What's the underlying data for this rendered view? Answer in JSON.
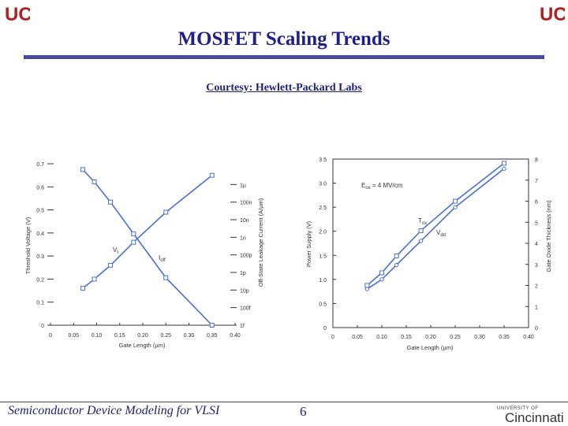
{
  "slide": {
    "title": "MOSFET Scaling Trends",
    "courtesy": "Courtesy: Hewlett-Packard Labs",
    "footer_text": "Semiconductor Device Modeling for VLSI",
    "page_number": "6",
    "institution_small": "UNIVERSITY OF",
    "institution_name": "Cincinnati",
    "logo_mark": "UC"
  },
  "colors": {
    "title": "#1f1f8a",
    "rule": "#4a4aa0",
    "plot": "#4a6fd6",
    "axis": "#333333",
    "logo": "#b02020"
  },
  "chart_data": [
    {
      "type": "line",
      "title": "",
      "xlabel": "Gate Length (µm)",
      "ylabel": "Threshold Voltage (V)",
      "ylabel_right": "Off-State Leakage Current (A/µm)",
      "x_ticks": [
        "0",
        "0.05",
        "0.10",
        "0.15",
        "0.20",
        "0.25",
        "0.30",
        "0.35",
        "0.40"
      ],
      "xlim": [
        0,
        0.4
      ],
      "y_ticks": [
        "0",
        "0.1",
        "0.2",
        "0.3",
        "0.4",
        "0.5",
        "0.6",
        "0.7"
      ],
      "ylim": [
        0,
        0.7
      ],
      "y_right_ticks": [
        "1f",
        "100f",
        "10p",
        "1p",
        "100p",
        "1n",
        "10n",
        "100n",
        "1µ"
      ],
      "y_right_log_range": [
        -15,
        -6
      ],
      "series": [
        {
          "name": "Vt",
          "label": "V",
          "label_sub": "t",
          "axis": "left",
          "x": [
            0.07,
            0.095,
            0.13,
            0.18,
            0.25,
            0.35
          ],
          "values": [
            0.16,
            0.2,
            0.26,
            0.36,
            0.49,
            0.65
          ]
        },
        {
          "name": "Ioff",
          "label": "I",
          "label_sub": "off",
          "axis": "right",
          "x": [
            0.07,
            0.095,
            0.13,
            0.18,
            0.25,
            0.35
          ],
          "log_values": [
            -6.15,
            -6.85,
            -8.0,
            -9.8,
            -12.3,
            -15.0
          ]
        }
      ]
    },
    {
      "type": "line",
      "title": "",
      "xlabel": "Gate Length (µm)",
      "ylabel": "Power Supply (V)",
      "ylabel_right": "Gate Oxide Thickness (nm)",
      "x_ticks": [
        "0",
        "0.05",
        "0.10",
        "0.15",
        "0.20",
        "0.25",
        "0.30",
        "0.35",
        "0.40"
      ],
      "xlim": [
        0,
        0.4
      ],
      "y_ticks": [
        "0",
        "0.5",
        "1.0",
        "1.5",
        "2.0",
        "2.5",
        "3.0",
        "3.5"
      ],
      "ylim": [
        0,
        3.5
      ],
      "y_right_ticks": [
        "0",
        "1",
        "2",
        "3",
        "4",
        "5",
        "6",
        "7",
        "8"
      ],
      "y_right_lim": [
        0,
        8
      ],
      "annotation": "E",
      "annotation_sub": "ox",
      "annotation_suffix": " = 4 MV/cm",
      "series": [
        {
          "name": "Tox",
          "label": "T",
          "label_sub": "ox",
          "axis": "right",
          "x": [
            0.07,
            0.1,
            0.13,
            0.18,
            0.25,
            0.35
          ],
          "values": [
            2.0,
            2.6,
            3.4,
            4.6,
            6.0,
            7.8
          ]
        },
        {
          "name": "Vdd",
          "label": "V",
          "label_sub": "dd",
          "axis": "left",
          "x": [
            0.07,
            0.1,
            0.13,
            0.18,
            0.25,
            0.35
          ],
          "values": [
            0.8,
            1.0,
            1.3,
            1.8,
            2.5,
            3.3
          ]
        }
      ]
    }
  ]
}
